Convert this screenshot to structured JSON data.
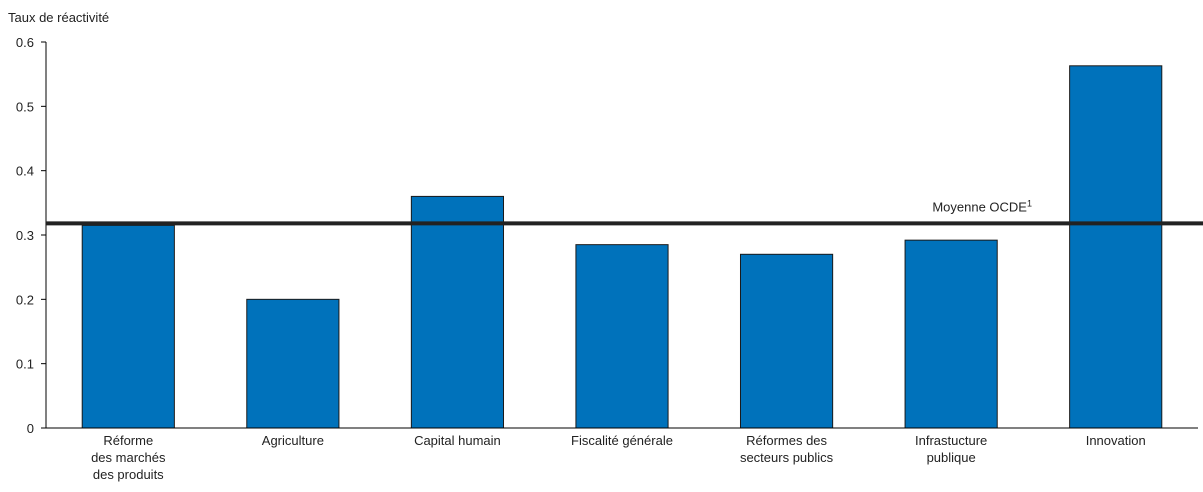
{
  "chart_data": {
    "type": "bar",
    "title": "",
    "ylabel": "Taux de réactivité",
    "xlabel": "",
    "ylim": [
      0,
      0.6
    ],
    "yticks": [
      {
        "value": 0,
        "label": "0"
      },
      {
        "value": 0.1,
        "label": "0.1"
      },
      {
        "value": 0.2,
        "label": "0.2"
      },
      {
        "value": 0.3,
        "label": "0.3"
      },
      {
        "value": 0.4,
        "label": "0.4"
      },
      {
        "value": 0.5,
        "label": "0.5"
      },
      {
        "value": 0.6,
        "label": "0.6"
      }
    ],
    "categories": [
      [
        "Réforme",
        "des marchés",
        "des produits"
      ],
      [
        "Agriculture"
      ],
      [
        "Capital humain"
      ],
      [
        "Fiscalité générale"
      ],
      [
        "Réformes des",
        "secteurs publics"
      ],
      [
        "Infrastucture",
        "publique"
      ],
      [
        "Innovation"
      ]
    ],
    "values": [
      0.315,
      0.2,
      0.36,
      0.285,
      0.27,
      0.292,
      0.563
    ],
    "reference_line": {
      "value": 0.318,
      "label": "Moyenne OCDE",
      "superscript": "1"
    },
    "grid": false,
    "colors": {
      "bar": "#0072bb",
      "bar_outline": "#1a1a1a",
      "reference_line": "#222222",
      "axis": "#000000"
    }
  }
}
